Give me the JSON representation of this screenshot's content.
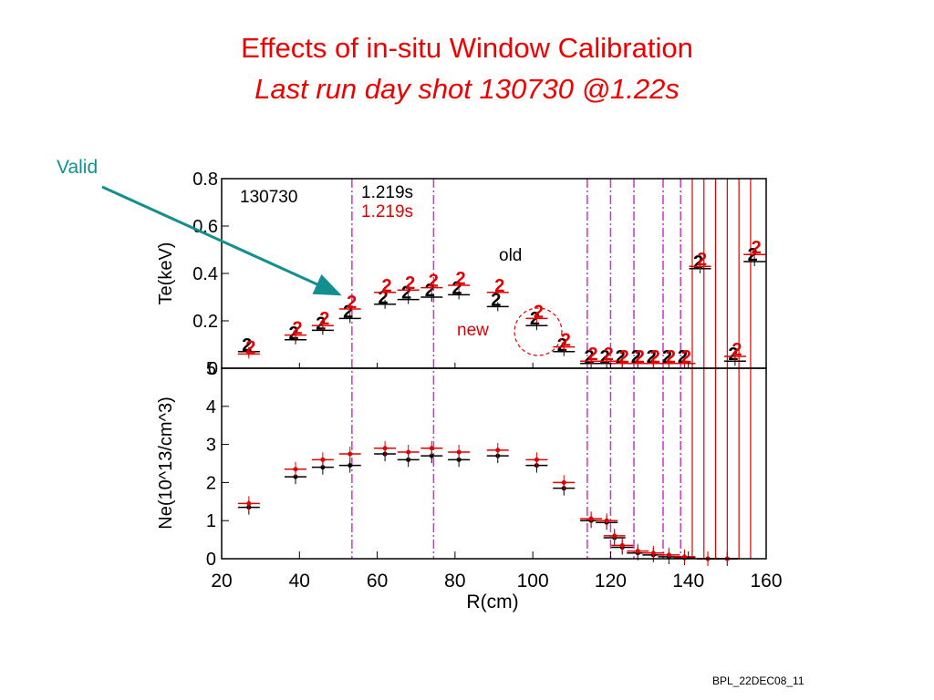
{
  "slide": {
    "title_line1": "Effects of in-situ Window Calibration",
    "title_line2": "Last run day shot 130730 @1.22s",
    "valid_label": "Valid",
    "footer": "BPL_22DEC08_11"
  },
  "colors": {
    "title": "#ee0000",
    "valid_annotation": "#138f8f",
    "old_series": "#000000",
    "new_series": "#e00000",
    "vline_magenta": "#cc33cc",
    "vline_red": "#e00000"
  },
  "chart_data": [
    {
      "type": "scatter",
      "panel": "top",
      "ylabel": "Te(keV)",
      "xlim": [
        20,
        160
      ],
      "ylim": [
        0,
        0.8
      ],
      "yticks": [
        "0.8",
        "0.6",
        "0.4",
        "0.2",
        "0"
      ],
      "annotations": {
        "shot": "130730",
        "time_old": "1.219s",
        "time_new": "1.219s",
        "old_label": "old",
        "new_label": "new",
        "point_marker": "2"
      },
      "series": [
        {
          "name": "old",
          "x": [
            27,
            39,
            46,
            53,
            62,
            68,
            74,
            81,
            91,
            101,
            108,
            115,
            119,
            123,
            127,
            131,
            135,
            139,
            143,
            152,
            157
          ],
          "values": [
            0.07,
            0.12,
            0.16,
            0.21,
            0.27,
            0.29,
            0.3,
            0.31,
            0.26,
            0.18,
            0.07,
            0.02,
            0.02,
            0.02,
            0.02,
            0.02,
            0.02,
            0.02,
            0.42,
            0.03,
            0.45
          ]
        },
        {
          "name": "new",
          "x": [
            27,
            39,
            46,
            53,
            62,
            68,
            74,
            81,
            91,
            101,
            108,
            115,
            119,
            123,
            127,
            131,
            135,
            139,
            143,
            152,
            157
          ],
          "values": [
            0.06,
            0.14,
            0.18,
            0.25,
            0.32,
            0.33,
            0.34,
            0.35,
            0.32,
            0.21,
            0.09,
            0.03,
            0.03,
            0.02,
            0.02,
            0.02,
            0.02,
            0.02,
            0.43,
            0.05,
            0.48
          ]
        }
      ]
    },
    {
      "type": "scatter",
      "panel": "bottom",
      "xlabel": "R(cm)",
      "ylabel": "Ne(10^13/cm^3)",
      "xlim": [
        20,
        160
      ],
      "ylim": [
        0,
        5
      ],
      "xticks": [
        "20",
        "40",
        "60",
        "80",
        "100",
        "120",
        "140",
        "160"
      ],
      "yticks": [
        "5",
        "4",
        "3",
        "2",
        "1",
        "0"
      ],
      "series": [
        {
          "name": "old",
          "x": [
            27,
            39,
            46,
            53,
            62,
            68,
            74,
            81,
            91,
            101,
            108,
            115,
            119,
            121,
            123,
            127,
            131,
            135,
            139,
            145,
            150
          ],
          "values": [
            1.35,
            2.15,
            2.4,
            2.45,
            2.75,
            2.6,
            2.7,
            2.6,
            2.7,
            2.45,
            1.85,
            1.0,
            0.95,
            0.55,
            0.3,
            0.15,
            0.1,
            0.05,
            0.02,
            0.0,
            0.0
          ]
        },
        {
          "name": "new",
          "x": [
            27,
            39,
            46,
            53,
            62,
            68,
            74,
            81,
            91,
            101,
            108,
            115,
            119,
            121,
            123,
            127,
            131,
            135,
            139,
            145,
            150
          ],
          "values": [
            1.45,
            2.35,
            2.6,
            2.75,
            2.9,
            2.8,
            2.9,
            2.8,
            2.85,
            2.6,
            2.0,
            1.05,
            1.0,
            0.6,
            0.35,
            0.2,
            0.15,
            0.1,
            0.05,
            0.0,
            0.0
          ]
        }
      ]
    }
  ]
}
